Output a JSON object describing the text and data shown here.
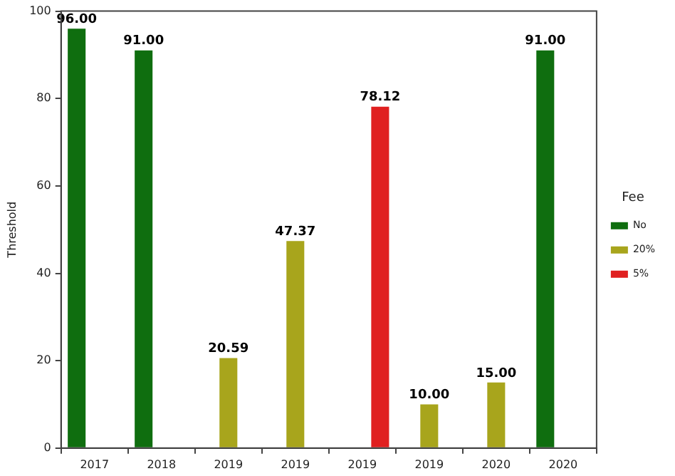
{
  "chart_data": {
    "type": "bar",
    "ylabel": "Threshold",
    "legend_title": "Fee",
    "legend": "right",
    "grid": false,
    "ylim": [
      0,
      100
    ],
    "yticks": [
      0,
      20,
      40,
      60,
      80,
      100
    ],
    "categories": [
      "2017",
      "2018",
      "2019",
      "2019",
      "2019",
      "2019",
      "2020",
      "2020"
    ],
    "series": [
      {
        "name": "No",
        "color": "#0f6e0f",
        "values": [
          96.0,
          91.0,
          null,
          null,
          null,
          null,
          null,
          91.0
        ],
        "value_labels": [
          "96.00",
          "91.00",
          null,
          null,
          null,
          null,
          null,
          "91.00"
        ]
      },
      {
        "name": "20%",
        "color": "#a8a51c",
        "values": [
          null,
          null,
          20.59,
          47.37,
          null,
          10.0,
          15.0,
          null
        ],
        "value_labels": [
          null,
          null,
          "20.59",
          "47.37",
          null,
          "10.00",
          "15.00",
          null
        ]
      },
      {
        "name": "5%",
        "color": "#e02020",
        "values": [
          null,
          null,
          null,
          null,
          78.12,
          null,
          null,
          null
        ],
        "value_labels": [
          null,
          null,
          null,
          null,
          "78.12",
          null,
          null,
          null
        ]
      }
    ]
  }
}
